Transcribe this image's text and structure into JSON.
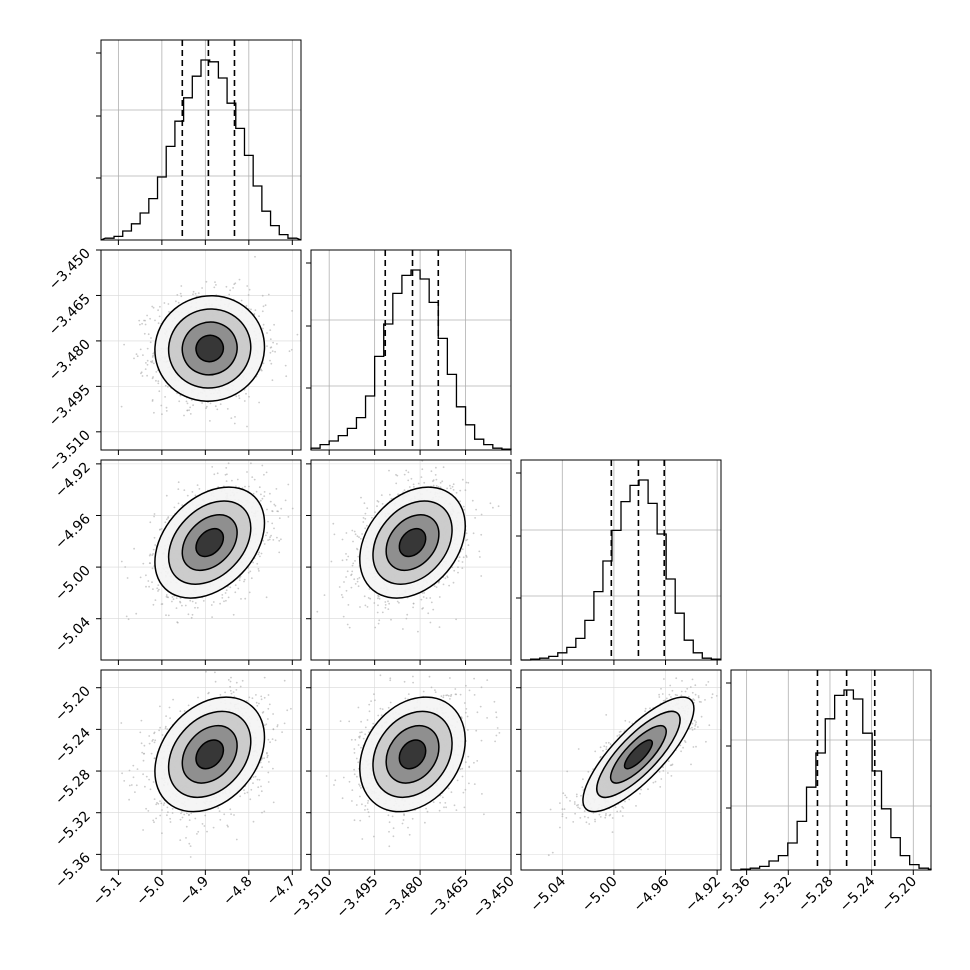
{
  "chart_data": {
    "type": "corner",
    "parameters": [
      "",
      "",
      "",
      ""
    ],
    "ranges": [
      [
        -5.14,
        -4.68
      ],
      [
        -3.516,
        -3.45
      ],
      [
        -5.072,
        -4.917
      ],
      [
        -5.375,
        -5.183
      ]
    ],
    "ticks": [
      [
        "-5.1",
        "-5.0",
        "-4.9",
        "-4.8",
        "-4.7"
      ],
      [
        "-3.510",
        "-3.495",
        "-3.480",
        "-3.465",
        "-3.450"
      ],
      [
        "-5.04",
        "-5.00",
        "-4.96",
        "-4.92"
      ],
      [
        "-5.36",
        "-5.32",
        "-5.28",
        "-5.24",
        "-5.20"
      ]
    ],
    "means": [
      -4.89,
      -3.4825,
      -4.981,
      -5.264
    ],
    "sigmas": [
      0.063,
      0.0087,
      0.0215,
      0.0275
    ],
    "quantiles": [
      [
        -4.953,
        -4.893,
        -4.833
      ],
      [
        -3.4915,
        -3.4825,
        -3.474
      ],
      [
        -5.002,
        -4.981,
        -4.961
      ],
      [
        -5.292,
        -5.264,
        -5.237
      ]
    ],
    "correlations": [
      [
        1,
        0.03,
        0.35,
        0.3
      ],
      [
        0.03,
        1,
        0.3,
        0.25
      ],
      [
        0.35,
        0.3,
        1,
        0.8
      ],
      [
        0.3,
        0.25,
        0.8,
        1
      ]
    ],
    "histograms": [
      {
        "x": [
          -5.12,
          -5.1,
          -5.08,
          -5.06,
          -5.04,
          -5.02,
          -5.0,
          -4.98,
          -4.96,
          -4.94,
          -4.92,
          -4.9,
          -4.88,
          -4.86,
          -4.84,
          -4.82,
          -4.8,
          -4.78,
          -4.76,
          -4.74,
          -4.72,
          -4.7
        ],
        "counts": [
          0.01,
          0.02,
          0.05,
          0.09,
          0.15,
          0.23,
          0.35,
          0.52,
          0.66,
          0.79,
          0.91,
          1.0,
          0.99,
          0.9,
          0.76,
          0.62,
          0.47,
          0.3,
          0.16,
          0.08,
          0.03,
          0.01
        ]
      },
      {
        "x": [
          -3.5145,
          -3.5115,
          -3.5085,
          -3.5055,
          -3.5025,
          -3.4995,
          -3.4965,
          -3.4935,
          -3.4905,
          -3.4875,
          -3.4845,
          -3.4815,
          -3.4785,
          -3.4755,
          -3.4725,
          -3.4695,
          -3.4665,
          -3.4635,
          -3.4605,
          -3.4575,
          -3.4545,
          -3.4515
        ],
        "counts": [
          0.01,
          0.03,
          0.05,
          0.08,
          0.12,
          0.18,
          0.3,
          0.52,
          0.7,
          0.87,
          0.97,
          1.0,
          0.95,
          0.82,
          0.62,
          0.42,
          0.24,
          0.14,
          0.06,
          0.03,
          0.01,
          0.005
        ]
      },
      {
        "x": [
          -5.068,
          -5.061,
          -5.054,
          -5.047,
          -5.04,
          -5.033,
          -5.026,
          -5.019,
          -5.012,
          -5.005,
          -4.998,
          -4.991,
          -4.984,
          -4.977,
          -4.97,
          -4.963,
          -4.956,
          -4.949,
          -4.942,
          -4.935,
          -4.928,
          -4.921
        ],
        "counts": [
          0.0,
          0.005,
          0.01,
          0.02,
          0.04,
          0.07,
          0.12,
          0.22,
          0.38,
          0.55,
          0.72,
          0.88,
          0.97,
          1.0,
          0.87,
          0.7,
          0.45,
          0.26,
          0.11,
          0.04,
          0.01,
          0.005
        ]
      },
      {
        "x": [
          -5.37,
          -5.361,
          -5.352,
          -5.343,
          -5.334,
          -5.325,
          -5.316,
          -5.307,
          -5.298,
          -5.289,
          -5.28,
          -5.271,
          -5.262,
          -5.253,
          -5.244,
          -5.235,
          -5.226,
          -5.217,
          -5.208,
          -5.199,
          -5.19,
          -5.181
        ],
        "counts": [
          0.0,
          0.005,
          0.01,
          0.02,
          0.05,
          0.08,
          0.15,
          0.27,
          0.46,
          0.65,
          0.84,
          0.97,
          1.0,
          0.95,
          0.76,
          0.55,
          0.34,
          0.18,
          0.08,
          0.03,
          0.01,
          0.005
        ]
      }
    ],
    "contour_levels": [
      0.5,
      1.0,
      1.5,
      2.0
    ],
    "grid": true
  }
}
